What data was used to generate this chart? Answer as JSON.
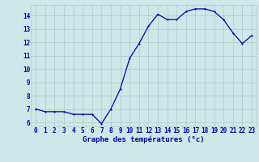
{
  "hours": [
    0,
    1,
    2,
    3,
    4,
    5,
    6,
    7,
    8,
    9,
    10,
    11,
    12,
    13,
    14,
    15,
    16,
    17,
    18,
    19,
    20,
    21,
    22,
    23
  ],
  "temps": [
    7.0,
    6.8,
    6.8,
    6.8,
    6.6,
    6.6,
    6.6,
    5.9,
    7.0,
    8.5,
    10.8,
    11.9,
    13.2,
    14.1,
    13.7,
    13.7,
    14.3,
    14.5,
    14.5,
    14.3,
    13.7,
    12.7,
    11.9,
    12.5
  ],
  "xlabel": "Graphe des températures (°c)",
  "line_color": "#0000aa",
  "bg_color": "#cce8e8",
  "grid_color": "#aacaca",
  "text_color": "#0000aa",
  "ylim_min": 5.7,
  "ylim_max": 14.8,
  "xlim_min": -0.5,
  "xlim_max": 23.5,
  "yticks": [
    6,
    7,
    8,
    9,
    10,
    11,
    12,
    13,
    14
  ],
  "xtick_labels": [
    "0",
    "1",
    "2",
    "3",
    "4",
    "5",
    "6",
    "7",
    "8",
    "9",
    "10",
    "11",
    "12",
    "13",
    "14",
    "15",
    "16",
    "17",
    "18",
    "19",
    "20",
    "21",
    "22",
    "23"
  ],
  "tick_fontsize": 5.5,
  "xlabel_fontsize": 6.5,
  "marker_size": 2.0,
  "line_width": 0.9
}
